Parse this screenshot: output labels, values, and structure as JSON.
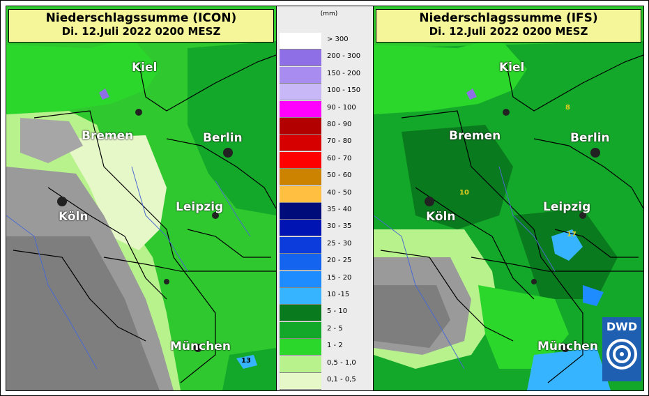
{
  "maps": {
    "icon": {
      "title_line1": "Niederschlagssumme (ICON)",
      "title_line2": "Di. 12.Juli 2022 0200 MESZ",
      "cities": {
        "kiel": "Kiel",
        "bremen": "Bremen",
        "berlin": "Berlin",
        "koeln": "Köln",
        "leipzig": "Leipzig",
        "muenchen": "München"
      },
      "annotations": {
        "n1": "13"
      }
    },
    "ifs": {
      "title_line1": "Niederschlagssumme (IFS)",
      "title_line2": "Di. 12.Juli 2022 0200 MESZ",
      "cities": {
        "kiel": "Kiel",
        "bremen": "Bremen",
        "berlin": "Berlin",
        "koeln": "Köln",
        "leipzig": "Leipzig",
        "muenchen": "München"
      },
      "annotations": {
        "n1": "8",
        "n2": "10",
        "n3": "17"
      }
    }
  },
  "legend": {
    "unit": "(mm)",
    "items": [
      {
        "label": "> 300",
        "color": "#ffffff"
      },
      {
        "label": "200 - 300",
        "color": "#8f6fe6"
      },
      {
        "label": "150 - 200",
        "color": "#a88cf0"
      },
      {
        "label": "100 - 150",
        "color": "#c8b8f8"
      },
      {
        "label": "90 - 100",
        "color": "#ff00ff"
      },
      {
        "label": "80 - 90",
        "color": "#b20000"
      },
      {
        "label": "70 - 80",
        "color": "#d70000"
      },
      {
        "label": "60 - 70",
        "color": "#ff0000"
      },
      {
        "label": "50 - 60",
        "color": "#cc8400"
      },
      {
        "label": "40 - 50",
        "color": "#ffbf40"
      },
      {
        "label": "35 - 40",
        "color": "#000c7a"
      },
      {
        "label": "30 - 35",
        "color": "#0014b4"
      },
      {
        "label": "25 - 30",
        "color": "#0c3cdc"
      },
      {
        "label": "20 - 25",
        "color": "#1464f0"
      },
      {
        "label": "15 - 20",
        "color": "#1e8cff"
      },
      {
        "label": "10 -15",
        "color": "#37b4ff"
      },
      {
        "label": "5 - 10",
        "color": "#0a7a1e"
      },
      {
        "label": "2 - 5",
        "color": "#14a82a"
      },
      {
        "label": "1 - 2",
        "color": "#2ad72a"
      },
      {
        "label": "0,5 - 1,0",
        "color": "#b8f28c"
      },
      {
        "label": "0,1 - 0,5",
        "color": "#e6f7c8"
      }
    ]
  },
  "logo": {
    "text": "DWD"
  }
}
